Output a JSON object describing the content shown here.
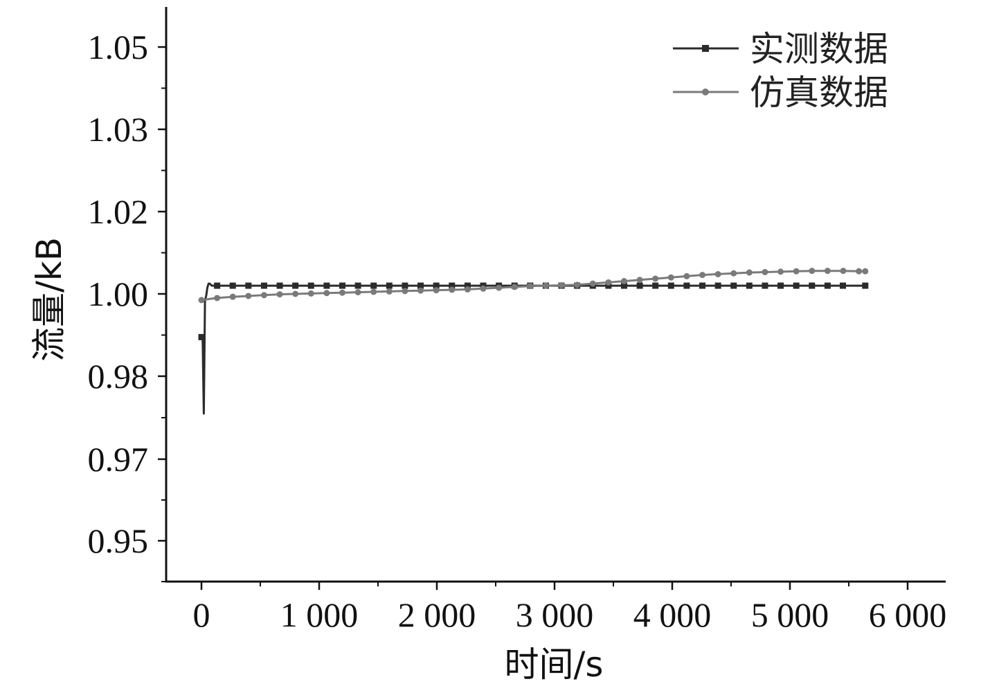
{
  "chart_data": {
    "type": "line",
    "title": "",
    "xlabel": "时间/s",
    "ylabel": "流量/kB",
    "xlim": [
      -300,
      6300
    ],
    "ylim": [
      0.94,
      1.055
    ],
    "x_ticks": [
      0,
      1000,
      2000,
      3000,
      4000,
      5000,
      6000
    ],
    "x_tick_labels": [
      "0",
      "1 000",
      "2 000",
      "3 000",
      "4 000",
      "5 000",
      "6 000"
    ],
    "y_ticks": [
      0.95,
      0.97,
      0.98,
      1.0,
      1.02,
      1.03,
      1.05
    ],
    "y_tick_labels": [
      "0.95",
      "0.97",
      "0.98",
      "1.00",
      "1.02",
      "1.03",
      "1.05"
    ],
    "grid": false,
    "legend_position": "top-right",
    "series": [
      {
        "name": "实测数据",
        "color": "#2b2b2b",
        "marker": "square",
        "x": [
          0,
          10,
          20,
          30,
          40,
          50,
          60,
          70,
          80,
          90,
          100,
          133,
          266,
          399,
          532,
          665,
          798,
          931,
          1064,
          1197,
          1330,
          1463,
          1596,
          1729,
          1862,
          1995,
          2128,
          2261,
          2394,
          2527,
          2660,
          2793,
          2926,
          3059,
          3192,
          3325,
          3458,
          3591,
          3724,
          3857,
          3990,
          4123,
          4256,
          4389,
          4522,
          4655,
          4788,
          4921,
          5054,
          5187,
          5320,
          5450,
          5640
        ],
        "y": [
          0.9895,
          0.9895,
          0.9755,
          0.9985,
          0.9995,
          1.0015,
          1.0025,
          1.0025,
          1.0022,
          1.002,
          1.002,
          1.002,
          1.002,
          1.002,
          1.002,
          1.002,
          1.002,
          1.002,
          1.002,
          1.002,
          1.002,
          1.002,
          1.002,
          1.002,
          1.002,
          1.002,
          1.002,
          1.002,
          1.002,
          1.002,
          1.002,
          1.002,
          1.002,
          1.002,
          1.002,
          1.002,
          1.002,
          1.002,
          1.002,
          1.002,
          1.002,
          1.002,
          1.002,
          1.002,
          1.002,
          1.002,
          1.002,
          1.002,
          1.002,
          1.002,
          1.002,
          1.002,
          1.002
        ]
      },
      {
        "name": "仿真数据",
        "color": "#7a7a7a",
        "marker": "circle",
        "x": [
          0,
          133,
          266,
          399,
          532,
          665,
          798,
          931,
          1064,
          1197,
          1330,
          1463,
          1596,
          1729,
          1862,
          1995,
          2128,
          2261,
          2394,
          2527,
          2660,
          2793,
          2926,
          3059,
          3192,
          3325,
          3458,
          3591,
          3724,
          3857,
          3990,
          4123,
          4256,
          4389,
          4522,
          4655,
          4788,
          4921,
          5054,
          5187,
          5320,
          5453,
          5586,
          5640
        ],
        "y": [
          0.9985,
          0.999,
          0.9993,
          0.9995,
          0.9997,
          0.9999,
          1.0,
          1.0001,
          1.0002,
          1.0003,
          1.0004,
          1.0005,
          1.0006,
          1.0007,
          1.0008,
          1.0009,
          1.001,
          1.0011,
          1.0013,
          1.0015,
          1.0017,
          1.0019,
          1.002,
          1.0021,
          1.0022,
          1.0025,
          1.0028,
          1.0031,
          1.0034,
          1.0037,
          1.004,
          1.0043,
          1.0046,
          1.0048,
          1.005,
          1.0052,
          1.0053,
          1.0054,
          1.0055,
          1.0056,
          1.0056,
          1.0056,
          1.0055,
          1.0055
        ]
      }
    ]
  }
}
